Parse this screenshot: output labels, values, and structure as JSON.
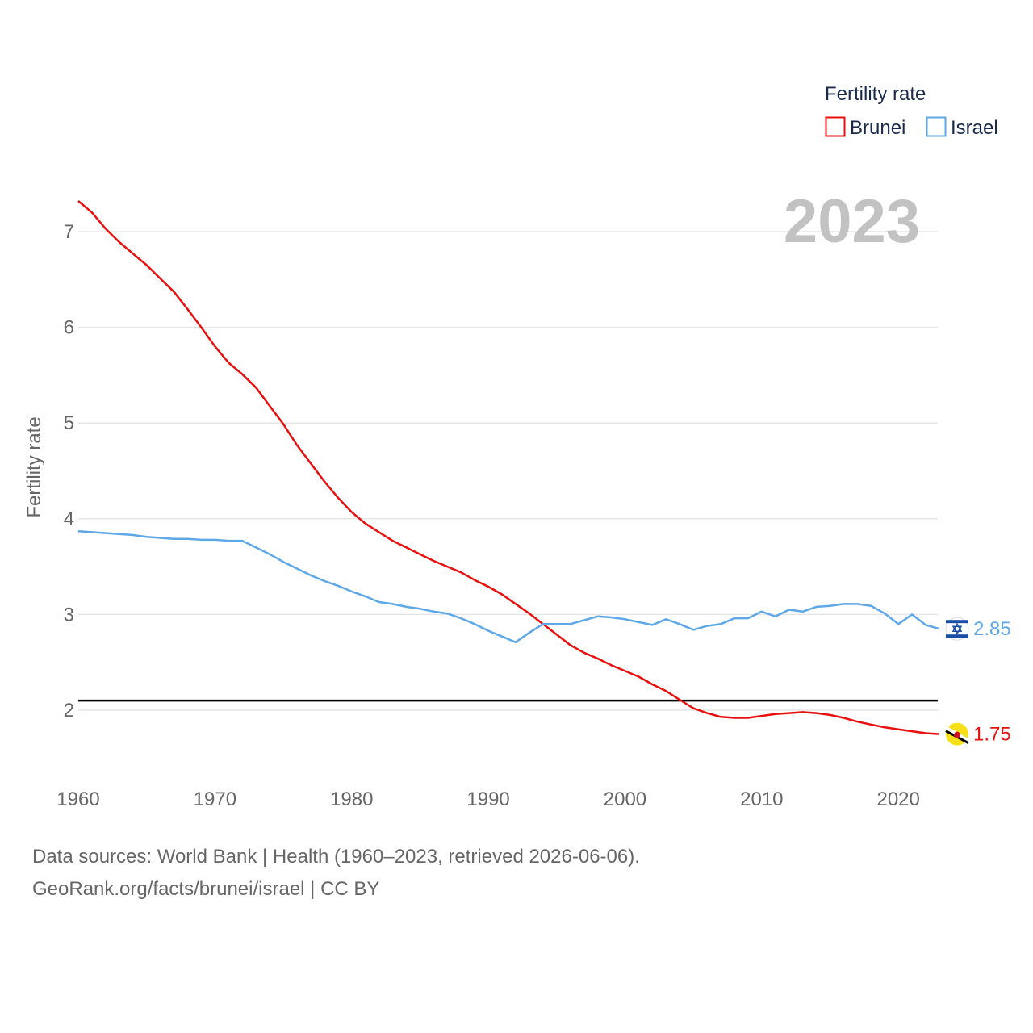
{
  "legend": {
    "title": "Fertility rate"
  },
  "year_label": "2023",
  "footer": {
    "line1": "Data sources: World Bank | Health (1960–2023, retrieved 2026-06-06).",
    "line2": "GeoRank.org/facts/brunei/israel | CC BY"
  },
  "colors": {
    "brunei": "#e8100f",
    "israel": "#5ea8e8",
    "grid": "#e6e6e6",
    "reference": "#000000"
  },
  "chart_data": {
    "type": "line",
    "title": "",
    "xlabel": "",
    "ylabel": "Fertility rate",
    "xlim": [
      1960,
      2023
    ],
    "ylim": [
      1.5,
      7.3
    ],
    "xticks": [
      1960,
      1970,
      1980,
      1990,
      2000,
      2010,
      2020
    ],
    "yticks": [
      2,
      3,
      4,
      5,
      6,
      7
    ],
    "reference_line": 2.1,
    "legend_position": "top-right",
    "x": [
      1960,
      1961,
      1962,
      1963,
      1964,
      1965,
      1966,
      1967,
      1968,
      1969,
      1970,
      1971,
      1972,
      1973,
      1974,
      1975,
      1976,
      1977,
      1978,
      1979,
      1980,
      1981,
      1982,
      1983,
      1984,
      1985,
      1986,
      1987,
      1988,
      1989,
      1990,
      1991,
      1992,
      1993,
      1994,
      1995,
      1996,
      1997,
      1998,
      1999,
      2000,
      2001,
      2002,
      2003,
      2004,
      2005,
      2006,
      2007,
      2008,
      2009,
      2010,
      2011,
      2012,
      2013,
      2014,
      2015,
      2016,
      2017,
      2018,
      2019,
      2020,
      2021,
      2022,
      2023
    ],
    "series": [
      {
        "name": "Brunei",
        "end_label": "1.75",
        "flag_icon": "brunei-flag-icon",
        "values": [
          7.32,
          7.2,
          7.03,
          6.89,
          6.77,
          6.65,
          6.51,
          6.37,
          6.19,
          6.0,
          5.8,
          5.63,
          5.51,
          5.37,
          5.18,
          4.99,
          4.77,
          4.58,
          4.39,
          4.22,
          4.07,
          3.95,
          3.86,
          3.77,
          3.7,
          3.63,
          3.56,
          3.5,
          3.44,
          3.36,
          3.29,
          3.21,
          3.11,
          3.01,
          2.9,
          2.79,
          2.68,
          2.6,
          2.54,
          2.47,
          2.41,
          2.35,
          2.27,
          2.2,
          2.11,
          2.02,
          1.97,
          1.93,
          1.92,
          1.92,
          1.94,
          1.96,
          1.97,
          1.98,
          1.97,
          1.95,
          1.92,
          1.88,
          1.85,
          1.82,
          1.8,
          1.78,
          1.76,
          1.75
        ]
      },
      {
        "name": "Israel",
        "end_label": "2.85",
        "flag_icon": "israel-flag-icon",
        "values": [
          3.87,
          3.86,
          3.85,
          3.84,
          3.83,
          3.81,
          3.8,
          3.79,
          3.79,
          3.78,
          3.78,
          3.77,
          3.77,
          3.7,
          3.63,
          3.55,
          3.48,
          3.41,
          3.35,
          3.3,
          3.24,
          3.19,
          3.13,
          3.11,
          3.08,
          3.06,
          3.03,
          3.01,
          2.96,
          2.9,
          2.83,
          2.77,
          2.71,
          2.81,
          2.9,
          2.9,
          2.9,
          2.94,
          2.98,
          2.97,
          2.95,
          2.92,
          2.89,
          2.95,
          2.9,
          2.84,
          2.88,
          2.9,
          2.96,
          2.96,
          3.03,
          2.98,
          3.05,
          3.03,
          3.08,
          3.09,
          3.11,
          3.11,
          3.09,
          3.01,
          2.9,
          3.0,
          2.89,
          2.85
        ]
      }
    ]
  }
}
